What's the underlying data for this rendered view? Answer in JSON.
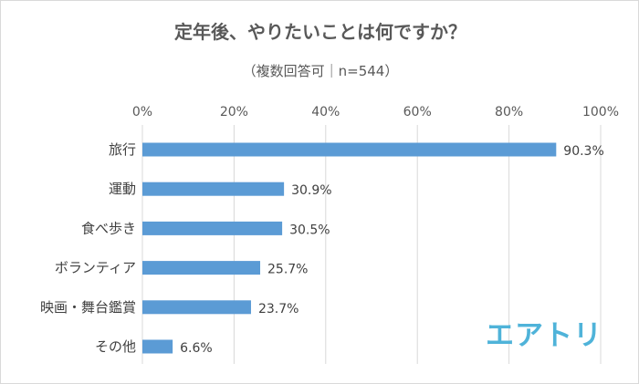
{
  "title": "定年後、やりたいことは何ですか？",
  "subtitle": "（複数回答可｜n=544）",
  "logo_text": "エアトリ",
  "colors": {
    "bar": "#5b9bd5",
    "grid": "#d9d9d9",
    "text": "#595959",
    "logo": "#4fb3d9"
  },
  "chart_data": {
    "type": "bar",
    "orientation": "horizontal",
    "title": "定年後、やりたいことは何ですか？",
    "subtitle": "（複数回答可｜n=544）",
    "categories": [
      "旅行",
      "運動",
      "食べ歩き",
      "ボランティア",
      "映画・舞台鑑賞",
      "その他"
    ],
    "values": [
      90.3,
      30.9,
      30.5,
      25.7,
      23.7,
      6.6
    ],
    "value_labels": [
      "90.3%",
      "30.9%",
      "30.5%",
      "25.7%",
      "23.7%",
      "6.6%"
    ],
    "xlim": [
      0,
      100
    ],
    "x_ticks": [
      0,
      20,
      40,
      60,
      80,
      100
    ],
    "x_tick_labels": [
      "0%",
      "20%",
      "40%",
      "60%",
      "80%",
      "100%"
    ],
    "grid": true,
    "legend": "none",
    "axis_position": "top"
  }
}
